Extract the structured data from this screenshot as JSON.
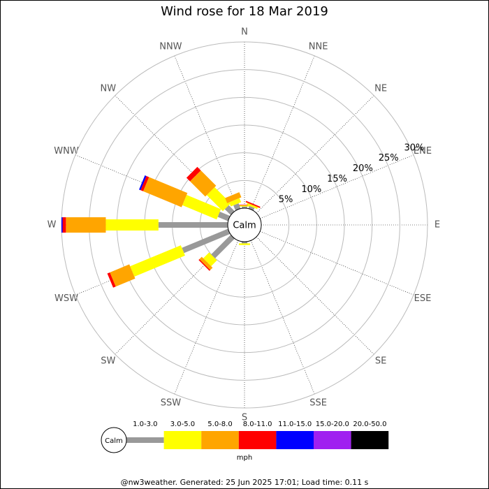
{
  "chart_data": {
    "type": "windrose",
    "title": "Wind rose for 18 Mar 2019",
    "categories": [
      "N",
      "NNE",
      "NE",
      "ENE",
      "E",
      "ESE",
      "SE",
      "SSE",
      "S",
      "SSW",
      "SW",
      "WSW",
      "W",
      "WNW",
      "NW",
      "NNW"
    ],
    "center_label": "Calm",
    "unit": "mph",
    "footer": "@nw3weather. Generated: 25 Jun 2025 17:01; Load time: 0.11 s",
    "rlim": [
      0,
      30
    ],
    "rticks": [
      {
        "value": 5,
        "label": "5%"
      },
      {
        "value": 10,
        "label": "10%"
      },
      {
        "value": 15,
        "label": "15%"
      },
      {
        "value": 20,
        "label": "20%"
      },
      {
        "value": 25,
        "label": "25%"
      },
      {
        "value": 30,
        "label": "30%"
      }
    ],
    "series": [
      {
        "name": "1.0-3.0",
        "color": "#999999",
        "values": [
          0.3,
          0.5,
          0,
          0,
          0,
          0,
          0,
          0,
          0.3,
          0,
          5,
          9,
          12.5,
          2,
          1.5,
          1
        ]
      },
      {
        "name": "3.0-5.0",
        "color": "#ffff00",
        "values": [
          0.2,
          0.3,
          0,
          0,
          0,
          0,
          0,
          0,
          0.3,
          0,
          1.5,
          9.9,
          9.5,
          6.7,
          4.1,
          0.8
        ]
      },
      {
        "name": "5.0-8.0",
        "color": "#ffa500",
        "values": [
          0,
          0.1,
          0,
          0,
          0,
          0,
          0,
          0,
          0,
          0,
          0.6,
          3.8,
          7.2,
          7.5,
          3.9,
          1
        ]
      },
      {
        "name": "8.0-11.0",
        "color": "#ff0000",
        "values": [
          0.1,
          0.2,
          0,
          0,
          0,
          0,
          0,
          0,
          0,
          0,
          0.2,
          0.5,
          0.6,
          0.5,
          0.9,
          0
        ]
      },
      {
        "name": "11.0-15.0",
        "color": "#0000ff",
        "values": [
          0,
          0,
          0,
          0,
          0,
          0,
          0,
          0,
          0,
          0,
          0,
          0,
          0.2,
          0.3,
          0,
          0
        ]
      },
      {
        "name": "15.0-20.0",
        "color": "#a020f0",
        "values": [
          0,
          0,
          0,
          0,
          0,
          0,
          0,
          0,
          0,
          0,
          0,
          0,
          0,
          0,
          0,
          0
        ]
      },
      {
        "name": "20.0-50.0",
        "color": "#000000",
        "values": [
          0,
          0,
          0,
          0,
          0,
          0,
          0,
          0,
          0,
          0,
          0,
          0,
          0,
          0,
          0,
          0
        ]
      }
    ]
  }
}
